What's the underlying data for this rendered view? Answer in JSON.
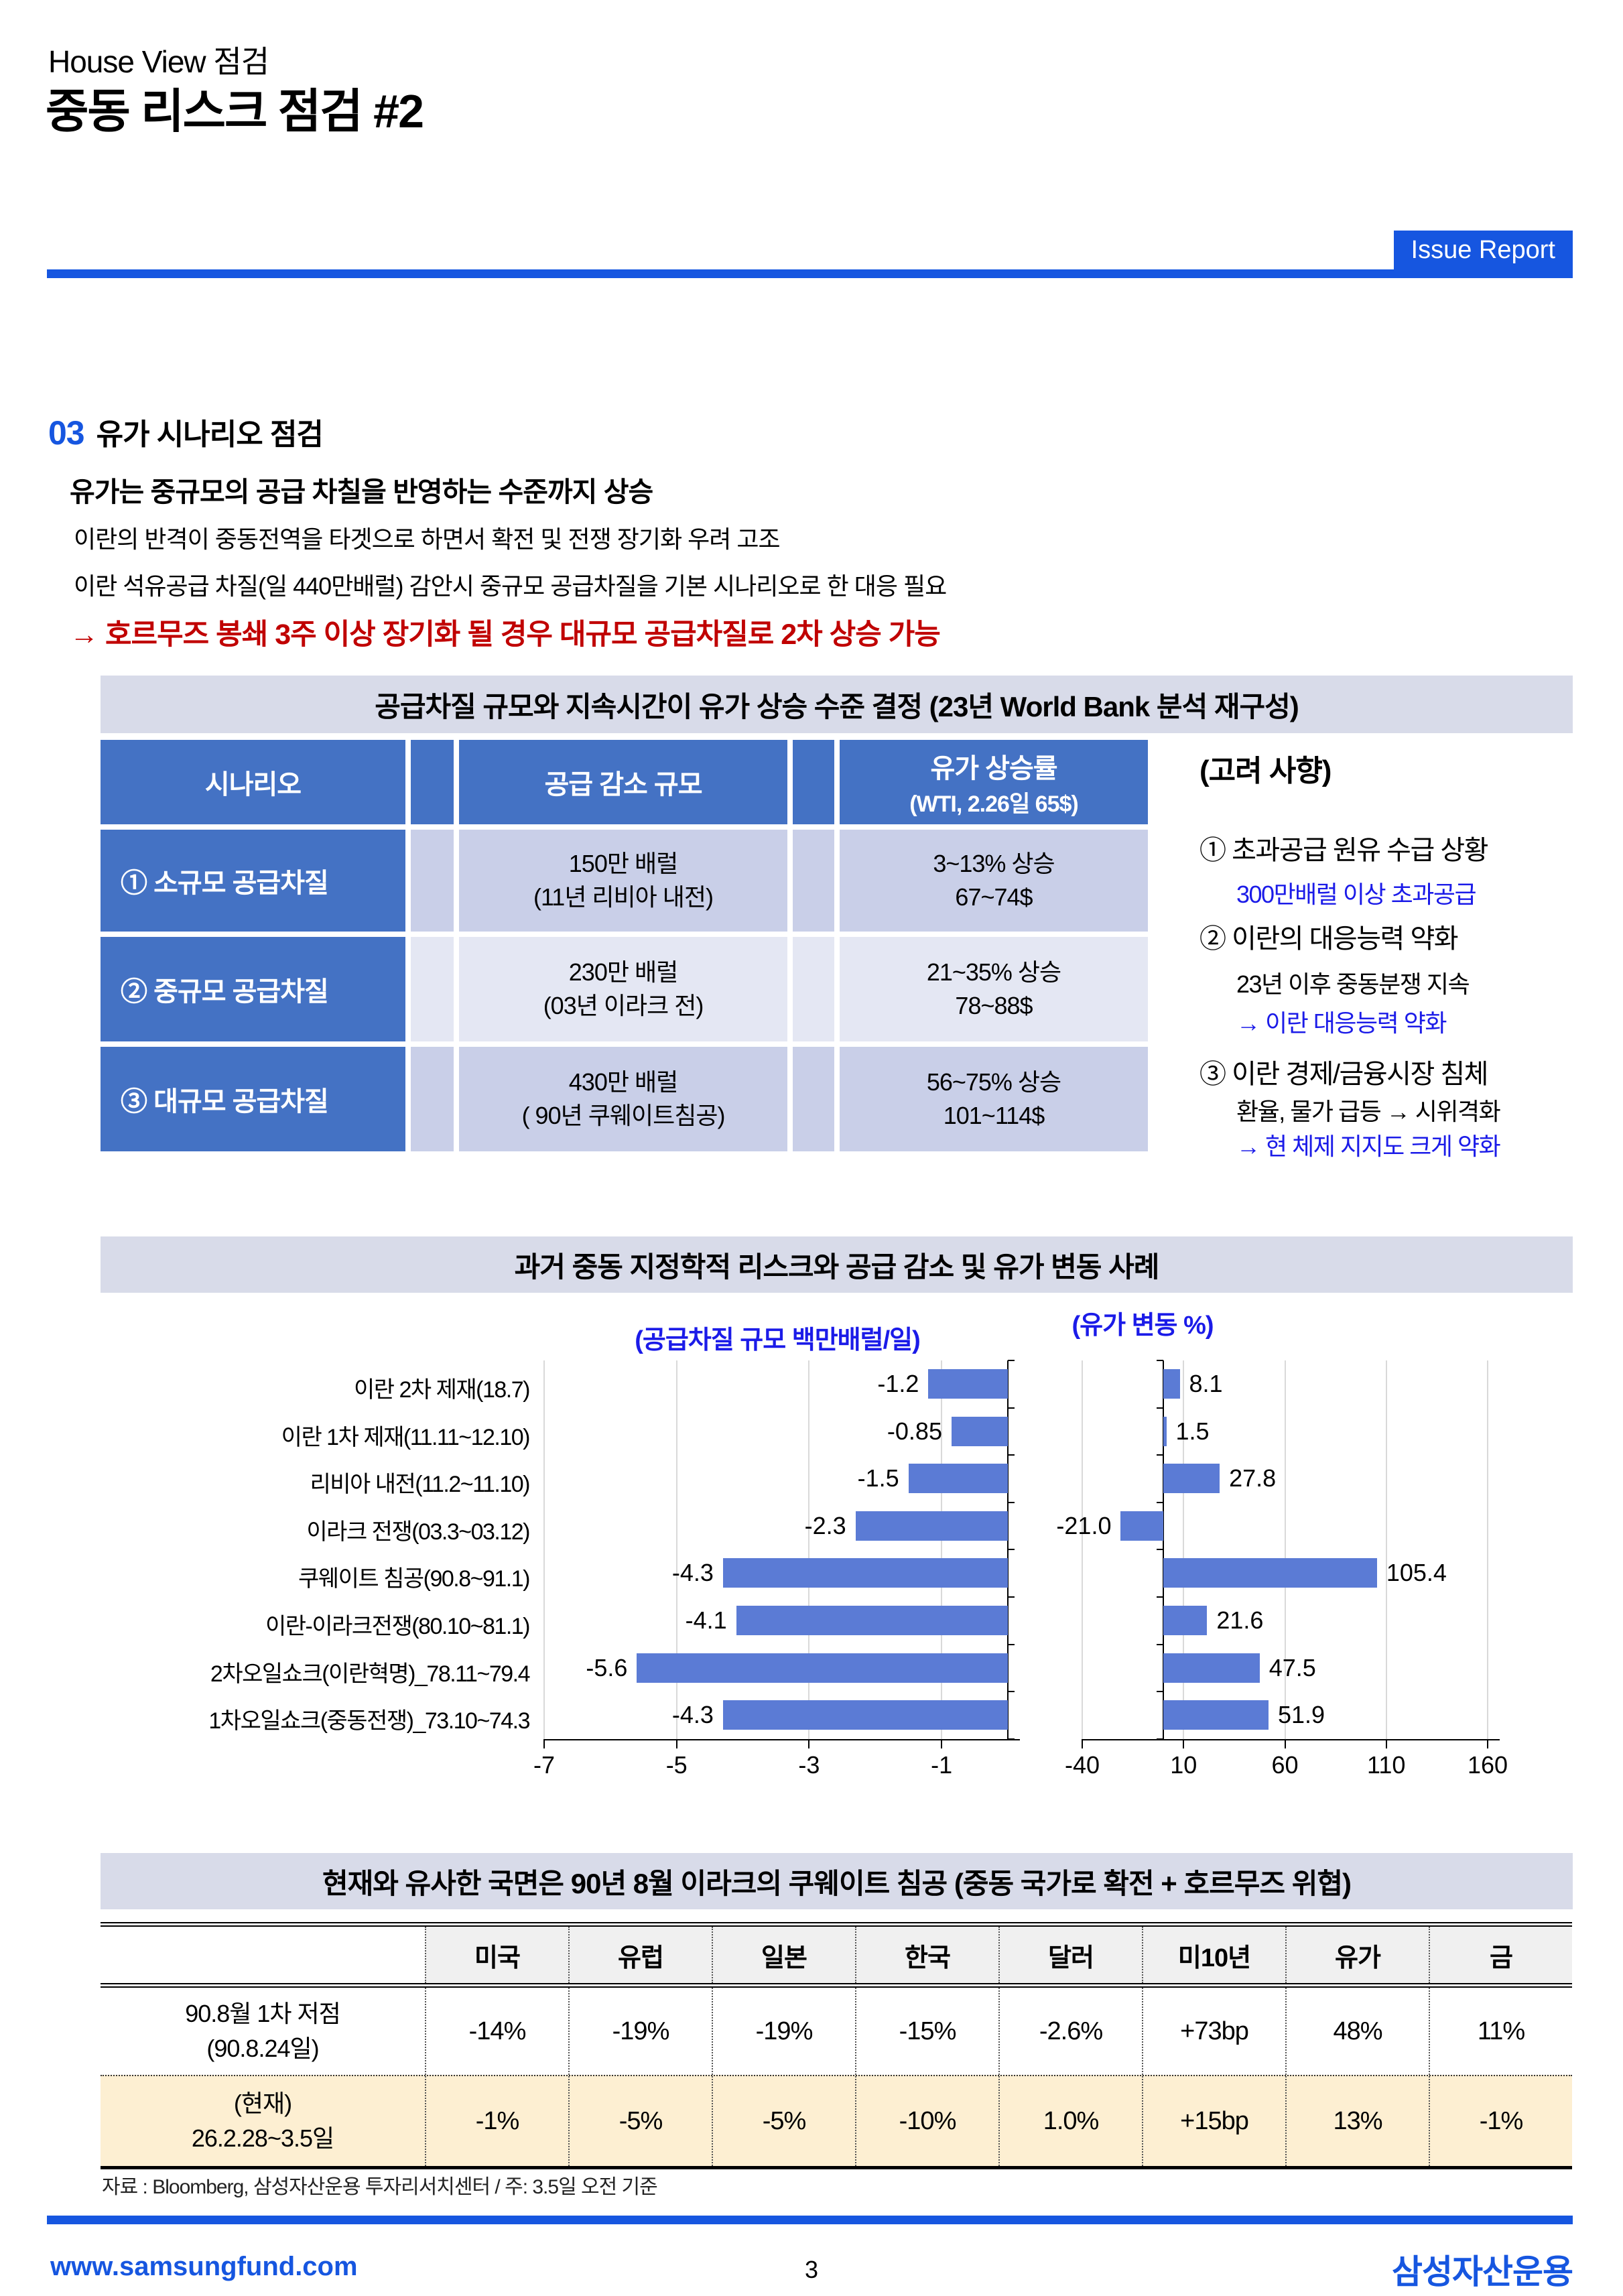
{
  "header": {
    "suptitle": "House View 점검",
    "title": "중동 리스크 점검 #2",
    "badge": "Issue Report"
  },
  "section": {
    "number": "03",
    "title": "유가 시나리오 점검",
    "lead": "유가는 중규모의 공급 차칠을 반영하는 수준까지 상승",
    "line1": "이란의 반격이 중동전역을 타겟으로 하면서 확전 및 전쟁 장기화 우려 고조",
    "line2": "이란 석유공급 차질(일 440만배럴) 감안시 중규모 공급차질을 기본 시나리오로 한 대응 필요",
    "alert": "→ 호르무즈 봉쇄 3주 이상 장기화 될 경우 대규모 공급차질로 2차 상승 가능"
  },
  "scenario": {
    "banner": "공급차질 규모와 지속시간이 유가 상승 수준 결정 (23년 World Bank 분석 재구성)",
    "col_scenario": "시나리오",
    "col_supply": "공급 감소 규모",
    "col_price1": "유가 상승률",
    "col_price2": "(WTI, 2.26일 65$)",
    "rows": [
      {
        "name": "① 소규모 공급차질",
        "supply1": "150만 배럴",
        "supply2": "(11년 리비아 내전)",
        "price1": "3~13% 상승",
        "price2": "67~74$"
      },
      {
        "name": "② 중규모 공급차질",
        "supply1": "230만 배럴",
        "supply2": "(03년 이라크 전)",
        "price1": "21~35% 상승",
        "price2": "78~88$"
      },
      {
        "name": "③ 대규모 공급차질",
        "supply1": "430만 배럴",
        "supply2": "( 90년 쿠웨이트침공)",
        "price1": "56~75% 상승",
        "price2": "101~114$"
      }
    ],
    "notes": {
      "title": "(고려 사향)",
      "items": [
        {
          "text": "① 초과공급 원유 수급 상황",
          "blue": false,
          "sub": false
        },
        {
          "text": "300만배럴 이상 초과공급",
          "blue": true,
          "sub": true
        },
        {
          "text": "② 이란의 대응능력 약화",
          "blue": false,
          "sub": false
        },
        {
          "text": "23년 이후 중동분쟁 지속",
          "blue": false,
          "sub": true
        },
        {
          "text": "→ 이란 대응능력 약화",
          "blue": true,
          "sub": true
        },
        {
          "text": "③ 이란 경제/금융시장 침체",
          "blue": false,
          "sub": false
        },
        {
          "text": "환율, 물가 급등 → 시위격화",
          "blue": false,
          "sub": true
        },
        {
          "text": "→ 현 체제 지지도 크게 약화",
          "blue": true,
          "sub": true
        }
      ]
    }
  },
  "chart_banner": "과거 중동 지정학적 리스크와 공급 감소 및 유가 변동 사례",
  "chart_data": {
    "type": "bar",
    "orientation": "horizontal",
    "categories": [
      "이란 2차 제재(18.7)",
      "이란 1차 제재(11.11~12.10)",
      "리비아 내전(11.2~11.10)",
      "이라크 전쟁(03.3~03.12)",
      "쿠웨이트 침공(90.8~91.1)",
      "이란-이라크전쟁(80.10~81.1)",
      "2차오일쇼크(이란혁명)_78.11~79.4",
      "1차오일쇼크(중동전쟁)_73.10~74.3"
    ],
    "series": [
      {
        "name": "(공급차질 규모 백만배럴/일)",
        "values": [
          -1.2,
          -0.85,
          -1.5,
          -2.3,
          -4.3,
          -4.1,
          -5.6,
          -4.3
        ],
        "labels": [
          "-1.2",
          "-0.85",
          "-1.5",
          "-2.3",
          "-4.3",
          "-4.1",
          "-5.6",
          "-4.3"
        ],
        "xlim": [
          -7,
          0
        ],
        "tick_values": [
          -7,
          -5,
          -3,
          -1
        ],
        "ticks": [
          "-7",
          "-5",
          "-3",
          "-1"
        ]
      },
      {
        "name": "(유가 변동 %)",
        "values": [
          8.1,
          1.5,
          27.8,
          -21.0,
          105.4,
          21.6,
          47.5,
          51.9
        ],
        "labels": [
          "8.1",
          "1.5",
          "27.8",
          "-21.0",
          "105.4",
          "21.6",
          "47.5",
          "51.9"
        ],
        "xlim": [
          -40,
          160
        ],
        "tick_values": [
          -40,
          10,
          60,
          110,
          160
        ],
        "ticks": [
          "-40",
          "10",
          "60",
          "110",
          "160"
        ]
      }
    ],
    "bar_color": "#5B7BD5",
    "grid": true,
    "legend_position": "none"
  },
  "comparison": {
    "banner": "현재와 유사한 국면은 90년 8월 이라크의 쿠웨이트 침공 (중동 국가로 확전 + 호르무즈 위협)",
    "columns": [
      "미국",
      "유럽",
      "일본",
      "한국",
      "달러",
      "미10년",
      "유가",
      "금"
    ],
    "rows": [
      {
        "label1": "90.8월 1차 저점",
        "label2": "(90.8.24일)",
        "values": [
          "-14%",
          "-19%",
          "-19%",
          "-15%",
          "-2.6%",
          "+73bp",
          "48%",
          "11%"
        ],
        "highlight": false
      },
      {
        "label1": "(현재)",
        "label2": "26.2.28~3.5일",
        "values": [
          "-1%",
          "-5%",
          "-5%",
          "-10%",
          "1.0%",
          "+15bp",
          "13%",
          "-1%"
        ],
        "highlight": true
      }
    ],
    "note": "자료 : Bloomberg, 삼성자산운용 투자리서치센터 / 주: 3.5일 오전 기준"
  },
  "footer": {
    "url": "www.samsungfund.com",
    "page": "3",
    "logo": "삼성자산운용"
  },
  "colors": {
    "accent_blue": "#1656E0",
    "text_blue": "#1B1BE8",
    "alert_red": "#C00000",
    "table_header_blue": "#4472C4",
    "row_fill_dark": "#C9CFE8",
    "row_fill_light": "#E4E7F3",
    "banner_fill": "#D8DBE9",
    "bar_blue": "#5B7BD5",
    "highlight_row": "#FDEFD2"
  }
}
